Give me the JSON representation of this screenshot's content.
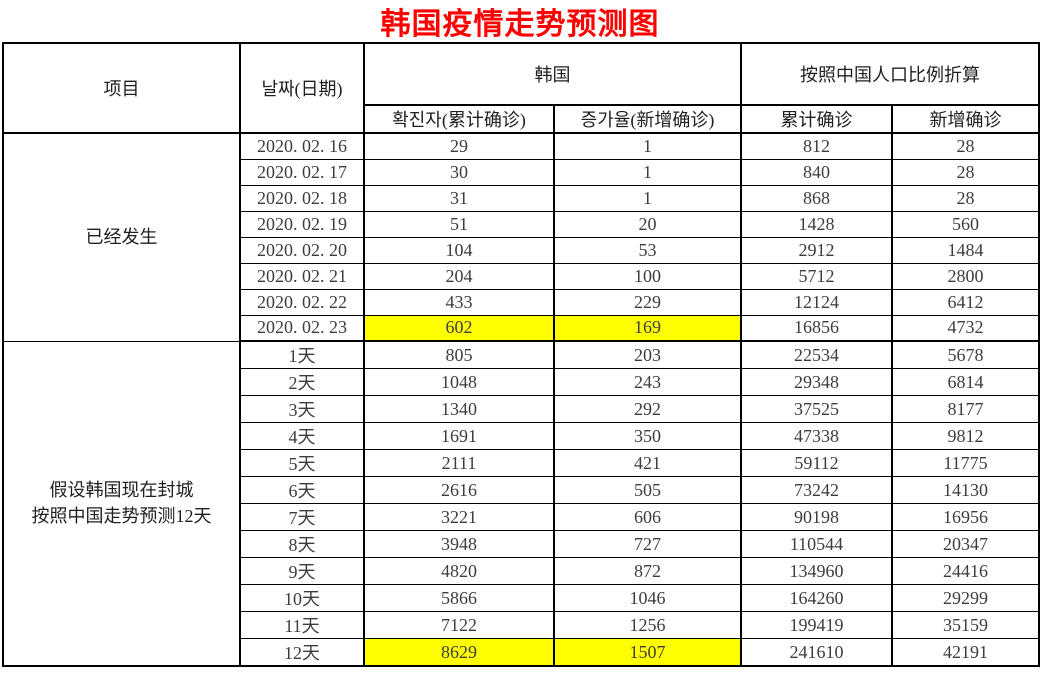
{
  "title": {
    "text": "韩国疫情走势预测图"
  },
  "colors": {
    "title": "#FF0000",
    "highlight": "#FFFF00",
    "border": "#000000",
    "number_text": "#3D3D3D",
    "header_text": "#1F1F1F",
    "background": "#FFFFFF"
  },
  "chart_data": {
    "type": "table",
    "title": "韩国疫情走势预测图",
    "headers": {
      "item": "项目",
      "date": "날짜(日期)",
      "korea_group": "韩国",
      "korea_sub": [
        "확진자(累计确诊)",
        "증가율(新增确诊)"
      ],
      "china_group": "按照中国人口比例折算",
      "china_sub": [
        "累计确诊",
        "新增确诊"
      ]
    },
    "sections": [
      {
        "label_lines": [
          "已经发生"
        ],
        "rows": [
          {
            "date": "2020. 02. 16",
            "values": [
              29,
              1,
              812,
              28
            ],
            "highlight": false
          },
          {
            "date": "2020. 02. 17",
            "values": [
              30,
              1,
              840,
              28
            ],
            "highlight": false
          },
          {
            "date": "2020. 02. 18",
            "values": [
              31,
              1,
              868,
              28
            ],
            "highlight": false
          },
          {
            "date": "2020. 02. 19",
            "values": [
              51,
              20,
              1428,
              560
            ],
            "highlight": false
          },
          {
            "date": "2020. 02. 20",
            "values": [
              104,
              53,
              2912,
              1484
            ],
            "highlight": false
          },
          {
            "date": "2020. 02. 21",
            "values": [
              204,
              100,
              5712,
              2800
            ],
            "highlight": false
          },
          {
            "date": "2020. 02. 22",
            "values": [
              433,
              229,
              12124,
              6412
            ],
            "highlight": false
          },
          {
            "date": "2020. 02. 23",
            "values": [
              602,
              169,
              16856,
              4732
            ],
            "highlight": true
          }
        ]
      },
      {
        "label_lines": [
          "假设韩国现在封城",
          "按照中国走势预测12天"
        ],
        "rows": [
          {
            "date": "1天",
            "values": [
              805,
              203,
              22534,
              5678
            ],
            "highlight": false
          },
          {
            "date": "2天",
            "values": [
              1048,
              243,
              29348,
              6814
            ],
            "highlight": false
          },
          {
            "date": "3天",
            "values": [
              1340,
              292,
              37525,
              8177
            ],
            "highlight": false
          },
          {
            "date": "4天",
            "values": [
              1691,
              350,
              47338,
              9812
            ],
            "highlight": false
          },
          {
            "date": "5天",
            "values": [
              2111,
              421,
              59112,
              11775
            ],
            "highlight": false
          },
          {
            "date": "6天",
            "values": [
              2616,
              505,
              73242,
              14130
            ],
            "highlight": false
          },
          {
            "date": "7天",
            "values": [
              3221,
              606,
              90198,
              16956
            ],
            "highlight": false
          },
          {
            "date": "8天",
            "values": [
              3948,
              727,
              110544,
              20347
            ],
            "highlight": false
          },
          {
            "date": "9天",
            "values": [
              4820,
              872,
              134960,
              24416
            ],
            "highlight": false
          },
          {
            "date": "10天",
            "values": [
              5866,
              1046,
              164260,
              29299
            ],
            "highlight": false
          },
          {
            "date": "11天",
            "values": [
              7122,
              1256,
              199419,
              35159
            ],
            "highlight": false
          },
          {
            "date": "12天",
            "values": [
              8629,
              1507,
              241610,
              42191
            ],
            "highlight": true
          }
        ]
      }
    ]
  }
}
